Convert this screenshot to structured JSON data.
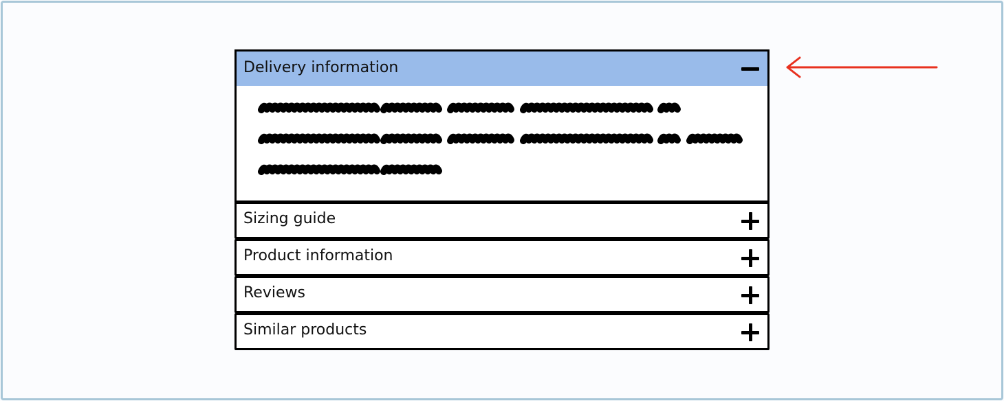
{
  "accordion": {
    "expanded": {
      "label": "Delivery information",
      "icon": "minus-icon",
      "header_color": "#99bbea"
    },
    "collapsed": [
      {
        "label": "Sizing guide",
        "icon": "plus-icon"
      },
      {
        "label": "Product information",
        "icon": "plus-icon"
      },
      {
        "label": "Reviews",
        "icon": "plus-icon"
      },
      {
        "label": "Similar products",
        "icon": "plus-icon"
      }
    ]
  },
  "annotation": {
    "icon": "arrow-left-icon",
    "color": "#e8311f"
  }
}
